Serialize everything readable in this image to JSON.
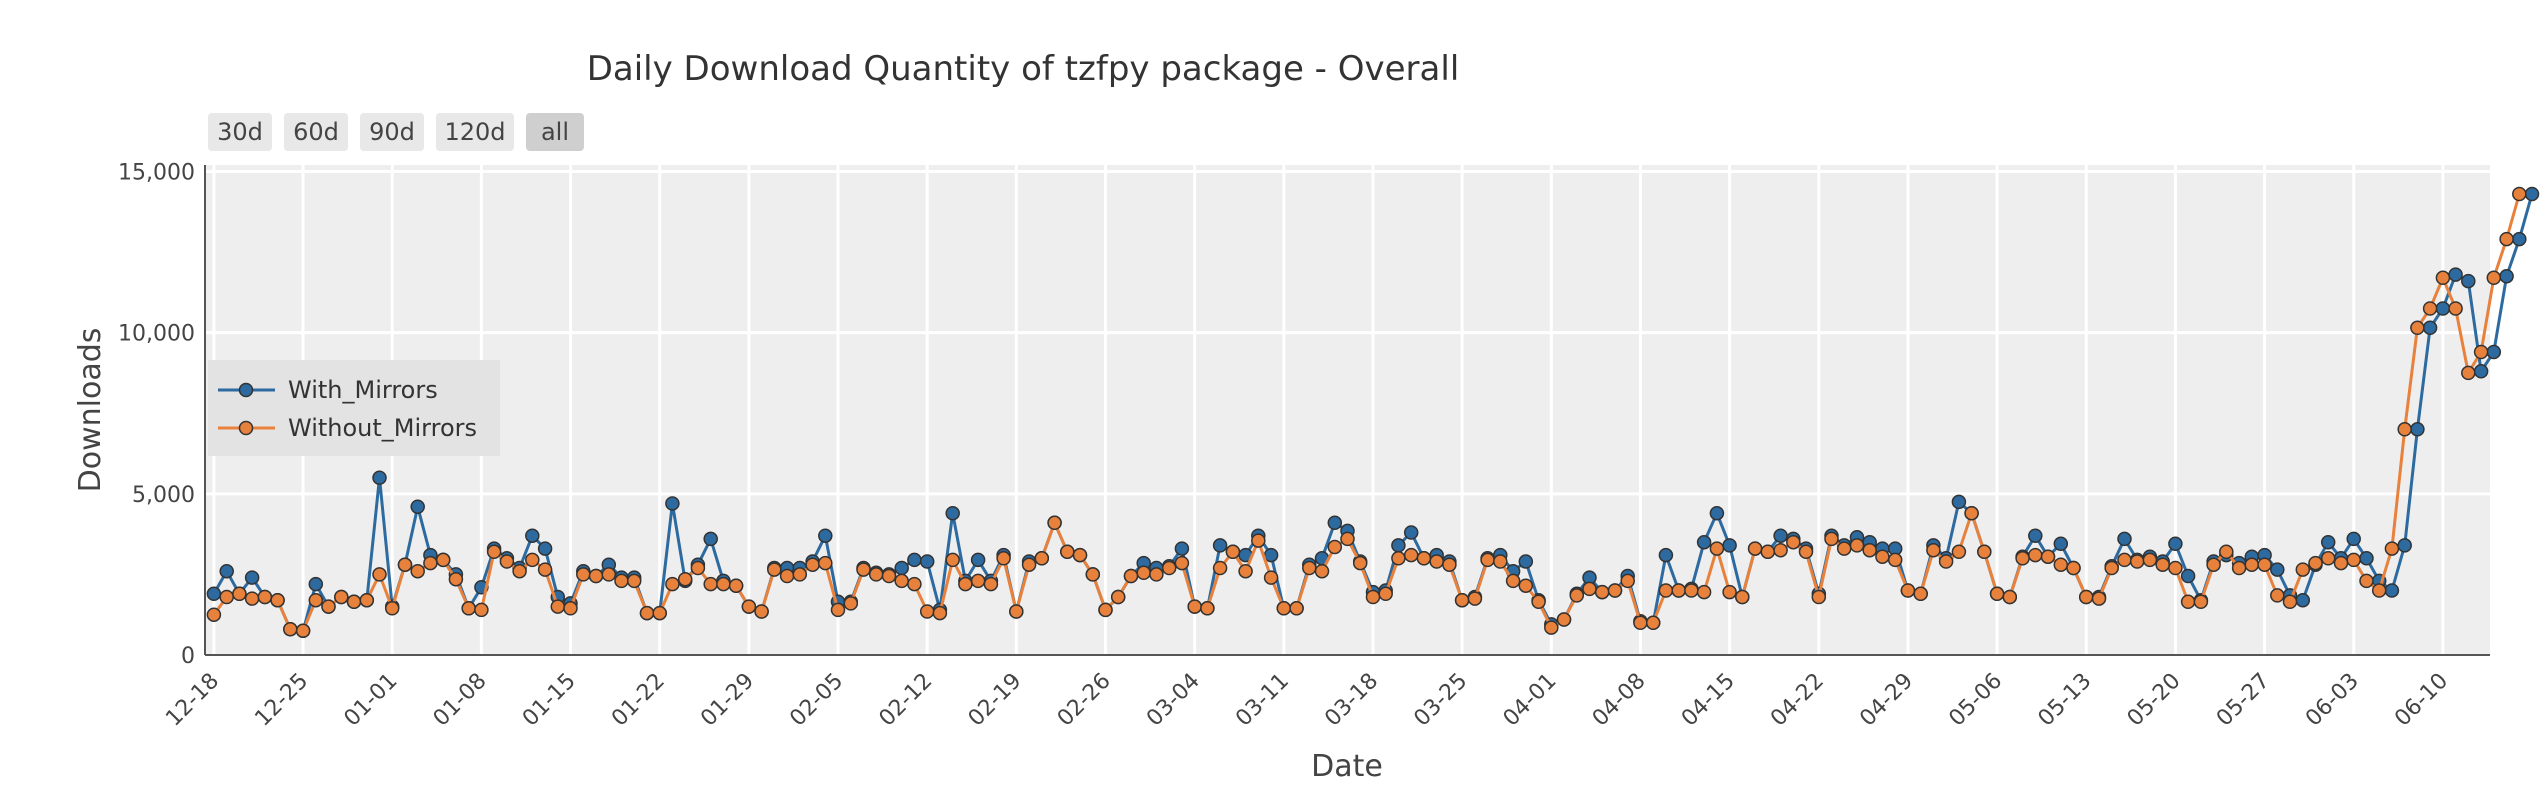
{
  "chart_data": {
    "type": "line",
    "title": "Daily Download Quantity of tzfpy package - Overall",
    "xlabel": "Date",
    "ylabel": "Downloads",
    "x_start": "2023-12-18",
    "x_end": "2024-06-13",
    "ylim": [
      0,
      15200
    ],
    "y_ticks": [
      0,
      5000,
      10000,
      15000
    ],
    "y_tick_labels": [
      "0",
      "5,000",
      "10,000",
      "15,000"
    ],
    "x_ticks": [
      "2023-12-18",
      "2023-12-25",
      "2024-01-01",
      "2024-01-08",
      "2024-01-15",
      "2024-01-22",
      "2024-01-29",
      "2024-02-05",
      "2024-02-12",
      "2024-02-19",
      "2024-02-26",
      "2024-03-04",
      "2024-03-11",
      "2024-03-18",
      "2024-03-25",
      "2024-04-01",
      "2024-04-08",
      "2024-04-15",
      "2024-04-22",
      "2024-04-29",
      "2024-05-06",
      "2024-05-13",
      "2024-05-20",
      "2024-05-27",
      "2024-06-03",
      "2024-06-10"
    ],
    "x_tick_labels": [
      "12-18",
      "12-25",
      "01-01",
      "01-08",
      "01-15",
      "01-22",
      "01-29",
      "02-05",
      "02-12",
      "02-19",
      "02-26",
      "03-04",
      "03-11",
      "03-18",
      "03-25",
      "04-01",
      "04-08",
      "04-15",
      "04-22",
      "04-29",
      "05-06",
      "05-13",
      "05-20",
      "05-27",
      "06-03",
      "06-10"
    ],
    "grid": true,
    "legend_position": "left-middle",
    "range_buttons": [
      {
        "label": "30d",
        "active": false
      },
      {
        "label": "60d",
        "active": false
      },
      {
        "label": "90d",
        "active": false
      },
      {
        "label": "120d",
        "active": false
      },
      {
        "label": "all",
        "active": true
      }
    ],
    "series": [
      {
        "name": "With_Mirrors",
        "color": "#2c6aa0",
        "values": [
          1900,
          2600,
          1900,
          2400,
          1800,
          1700,
          800,
          750,
          2200,
          1500,
          1800,
          1650,
          1700,
          5500,
          1500,
          2800,
          4600,
          3100,
          2950,
          2500,
          1450,
          2100,
          3300,
          3000,
          2700,
          3700,
          3300,
          1800,
          1600,
          2600,
          2450,
          2800,
          2400,
          2400,
          1300,
          1300,
          4700,
          2300,
          2800,
          3600,
          2300,
          2150,
          1500,
          1350,
          2700,
          2700,
          2700,
          2900,
          3700,
          1650,
          1650,
          2700,
          2550,
          2500,
          2700,
          2950,
          2900,
          1400,
          4400,
          2300,
          2950,
          2300,
          3100,
          1350,
          2900,
          3000,
          4100,
          3200,
          3100,
          2500,
          1400,
          1800,
          2450,
          2850,
          2700,
          2750,
          3300,
          1500,
          1450,
          3400,
          3200,
          3100,
          3700,
          3100,
          1450,
          1450,
          2800,
          3000,
          4100,
          3850,
          2900,
          1950,
          2000,
          3400,
          3800,
          3000,
          3100,
          2900,
          1700,
          1800,
          3000,
          3100,
          2600,
          2900,
          1700,
          950,
          1100,
          1900,
          2400,
          1950,
          2000,
          2450,
          1050,
          1000,
          3100,
          2000,
          2050,
          3500,
          4400,
          3400,
          1800,
          3300,
          3200,
          3700,
          3600,
          3300,
          1900,
          3700,
          3400,
          3650,
          3500,
          3300,
          3300,
          2000,
          1900,
          3400,
          3000,
          4750,
          4400,
          3200,
          1900,
          1800,
          3050,
          3700,
          3050,
          3450,
          2700,
          1800,
          1800,
          2750,
          3600,
          2950,
          3050,
          2900,
          3450,
          2450,
          1700,
          2900,
          3100,
          2850,
          3050,
          3100,
          2650,
          1850,
          1700,
          2800,
          3500,
          3000,
          3600,
          3000,
          2300,
          2000,
          3400,
          7000,
          10150,
          10750,
          11800,
          11600,
          8800,
          9400,
          11750,
          12900,
          14300
        ]
      },
      {
        "name": "Without_Mirrors",
        "color": "#e8813b",
        "values": [
          1250,
          1800,
          1900,
          1750,
          1800,
          1700,
          800,
          750,
          1700,
          1500,
          1800,
          1650,
          1700,
          2500,
          1450,
          2800,
          2600,
          2850,
          2950,
          2350,
          1450,
          1400,
          3200,
          2900,
          2600,
          2950,
          2650,
          1500,
          1450,
          2500,
          2450,
          2500,
          2300,
          2300,
          1300,
          1300,
          2200,
          2350,
          2700,
          2200,
          2200,
          2150,
          1500,
          1350,
          2650,
          2450,
          2500,
          2800,
          2850,
          1400,
          1600,
          2650,
          2500,
          2450,
          2300,
          2200,
          1350,
          1300,
          2950,
          2200,
          2300,
          2200,
          3000,
          1350,
          2800,
          3000,
          4100,
          3200,
          3100,
          2500,
          1400,
          1800,
          2450,
          2550,
          2500,
          2700,
          2850,
          1500,
          1450,
          2700,
          3200,
          2600,
          3550,
          2400,
          1450,
          1450,
          2700,
          2600,
          3350,
          3600,
          2850,
          1800,
          1900,
          3000,
          3100,
          3000,
          2900,
          2800,
          1700,
          1750,
          2950,
          2900,
          2300,
          2150,
          1650,
          850,
          1100,
          1850,
          2050,
          1950,
          2000,
          2300,
          1000,
          1000,
          2000,
          2000,
          2000,
          1950,
          3300,
          1950,
          1800,
          3300,
          3200,
          3250,
          3500,
          3200,
          1800,
          3600,
          3300,
          3400,
          3250,
          3050,
          2950,
          2000,
          1900,
          3250,
          2900,
          3200,
          4400,
          3200,
          1900,
          1800,
          3000,
          3100,
          3050,
          2800,
          2700,
          1800,
          1750,
          2700,
          2950,
          2900,
          2950,
          2800,
          2700,
          1650,
          1650,
          2800,
          3200,
          2700,
          2800,
          2800,
          1850,
          1650,
          2650,
          2850,
          3000,
          2850,
          2950,
          2300,
          2000,
          3300,
          7000,
          10150,
          10750,
          11700,
          10750,
          8750,
          9400,
          11700,
          12900,
          14300
        ]
      }
    ]
  }
}
